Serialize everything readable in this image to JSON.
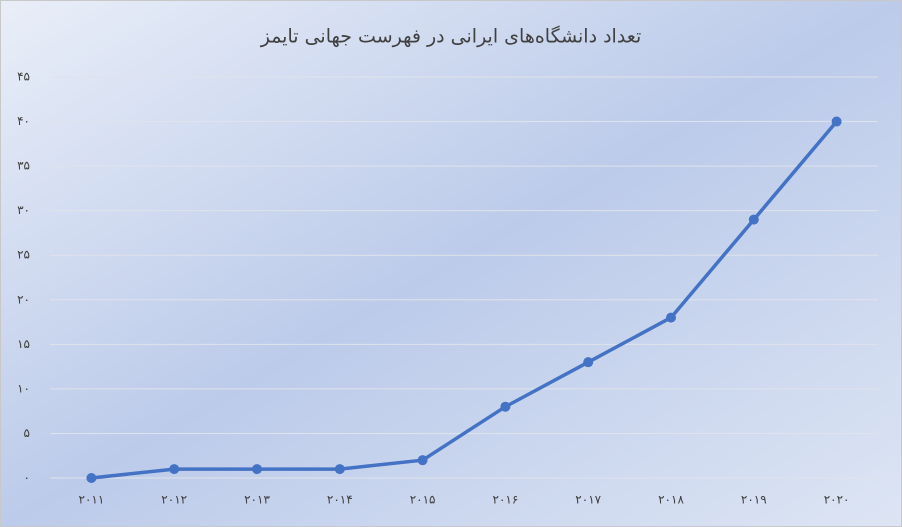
{
  "chart_data": {
    "type": "line",
    "title": "تعداد دانشگاه‌های ایرانی در فهرست جهانی تایمز",
    "categories": [
      "۲۰۱۱",
      "۲۰۱۲",
      "۲۰۱۳",
      "۲۰۱۴",
      "۲۰۱۵",
      "۲۰۱۶",
      "۲۰۱۷",
      "۲۰۱۸",
      "۲۰۱۹",
      "۲۰۲۰"
    ],
    "values": [
      0,
      1,
      1,
      1,
      2,
      8,
      13,
      18,
      29,
      40
    ],
    "color": "#4472c4",
    "ylim": [
      0,
      45
    ],
    "yticks": [
      {
        "value": 0,
        "label": "۰"
      },
      {
        "value": 5,
        "label": "۵"
      },
      {
        "value": 10,
        "label": "۱۰"
      },
      {
        "value": 15,
        "label": "۱۵"
      },
      {
        "value": 20,
        "label": "۲۰"
      },
      {
        "value": 25,
        "label": "۲۵"
      },
      {
        "value": 30,
        "label": "۳۰"
      },
      {
        "value": 35,
        "label": "۳۵"
      },
      {
        "value": 40,
        "label": "۴۰"
      },
      {
        "value": 45,
        "label": "۴۵"
      }
    ],
    "grid": true
  }
}
